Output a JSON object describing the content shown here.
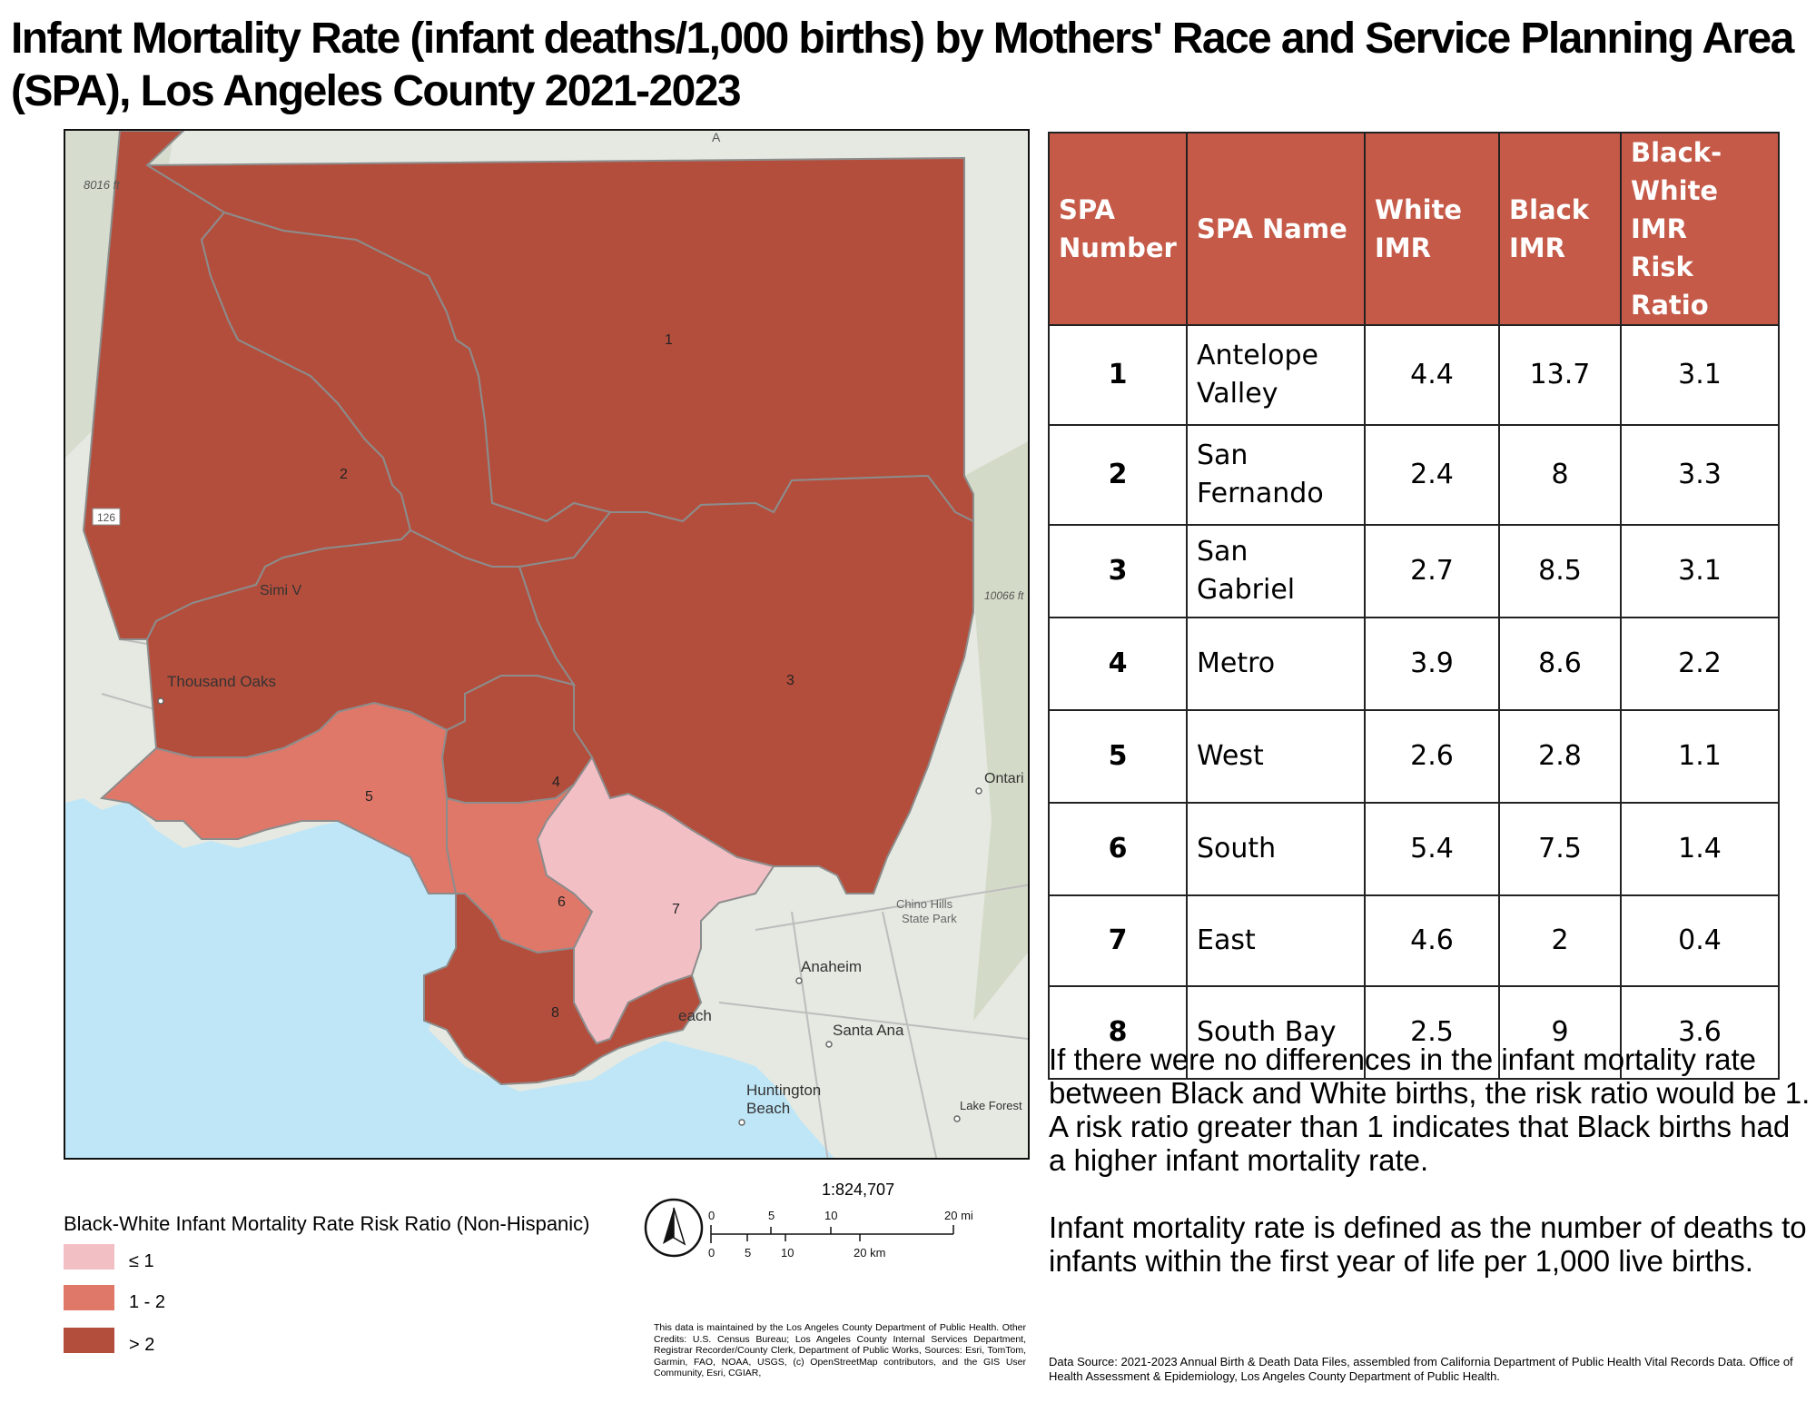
{
  "title": "Infant Mortality Rate (infant deaths/1,000 births) by Mothers' Race and Service Planning Area (SPA),  Los Angeles County 2021-2023",
  "colors": {
    "ratio_le_1": "#f2bfc5",
    "ratio_1_2": "#e0786a",
    "ratio_gt_2": "#b44e3c",
    "table_header": "#c55a48",
    "ocean": "#bfe6f7",
    "land": "#e5e9e1"
  },
  "map": {
    "spa_labels": [
      "1",
      "2",
      "3",
      "4",
      "5",
      "6",
      "7",
      "8"
    ],
    "place_labels": {
      "elev_west": "8016 ft",
      "route": "126",
      "simi": "Simi V",
      "thousand_oaks": "Thousand Oaks",
      "elev_east": "10066 ft",
      "ontario": "Ontari",
      "chino_line1": "Chino Hills",
      "chino_line2": "State Park",
      "anaheim": "Anaheim",
      "beach_frag": "each",
      "santa_ana": "Santa Ana",
      "huntington_line1": "Huntington",
      "huntington_line2": "Beach",
      "lake_forest": "Lake Forest",
      "top_frag": "A"
    },
    "scale": {
      "ratio": "1:824,707",
      "mi_ticks": [
        "0",
        "5",
        "10",
        "20 mi"
      ],
      "km_ticks": [
        "0",
        "5",
        "10",
        "20 km"
      ]
    }
  },
  "table": {
    "headers": {
      "number": [
        "SPA",
        "Number"
      ],
      "name": "SPA Name",
      "white": [
        "White",
        "IMR"
      ],
      "black": [
        "Black",
        "IMR"
      ],
      "ratio": [
        "Black-",
        "White IMR",
        "Risk Ratio"
      ]
    },
    "rows": [
      {
        "number": "1",
        "name": [
          "Antelope",
          "Valley"
        ],
        "white_imr": "4.4",
        "black_imr": "13.7",
        "risk_ratio": "3.1"
      },
      {
        "number": "2",
        "name": [
          "San",
          "Fernando"
        ],
        "white_imr": "2.4",
        "black_imr": "8",
        "risk_ratio": "3.3"
      },
      {
        "number": "3",
        "name": [
          "San Gabriel"
        ],
        "white_imr": "2.7",
        "black_imr": "8.5",
        "risk_ratio": "3.1"
      },
      {
        "number": "4",
        "name": [
          "Metro"
        ],
        "white_imr": "3.9",
        "black_imr": "8.6",
        "risk_ratio": "2.2"
      },
      {
        "number": "5",
        "name": [
          "West"
        ],
        "white_imr": "2.6",
        "black_imr": "2.8",
        "risk_ratio": "1.1"
      },
      {
        "number": "6",
        "name": [
          "South"
        ],
        "white_imr": "5.4",
        "black_imr": "7.5",
        "risk_ratio": "1.4"
      },
      {
        "number": "7",
        "name": [
          "East"
        ],
        "white_imr": "4.6",
        "black_imr": "2",
        "risk_ratio": "0.4"
      },
      {
        "number": "8",
        "name": [
          "South Bay"
        ],
        "white_imr": "2.5",
        "black_imr": "9",
        "risk_ratio": "3.6"
      }
    ]
  },
  "notes": {
    "risk_ratio": "If there were no differences in the infant mortality rate between Black and White births, the risk ratio would be 1. A risk ratio greater than 1 indicates that Black births had a higher infant mortality rate.",
    "imr_definition": "Infant mortality rate is defined as the number of deaths to infants within the first year of life per 1,000 live births."
  },
  "legend": {
    "title": "Black-White Infant Mortality Rate Risk Ratio (Non-Hispanic)",
    "items": [
      {
        "label": "≤ 1",
        "color": "#f2bfc5"
      },
      {
        "label": "1 - 2",
        "color": "#e0786a"
      },
      {
        "label": ">  2",
        "color": "#b44e3c"
      }
    ]
  },
  "credits": "This data is maintained by the Los Angeles County Department of Public Health. Other Credits: U.S. Census Bureau; Los Angeles County Internal Services Department, Registrar Recorder/County Clerk, Department of Public Works, Sources: Esri, TomTom, Garmin, FAO, NOAA, USGS, (c) OpenStreetMap contributors, and the GIS User Community, Esri, CGIAR,",
  "source": "Data Source: 2021-2023 Annual Birth & Death Data Files, assembled from California Department of Public Health Vital Records Data. Office of Health Assessment & Epidemiology, Los Angeles County Department of Public Health."
}
